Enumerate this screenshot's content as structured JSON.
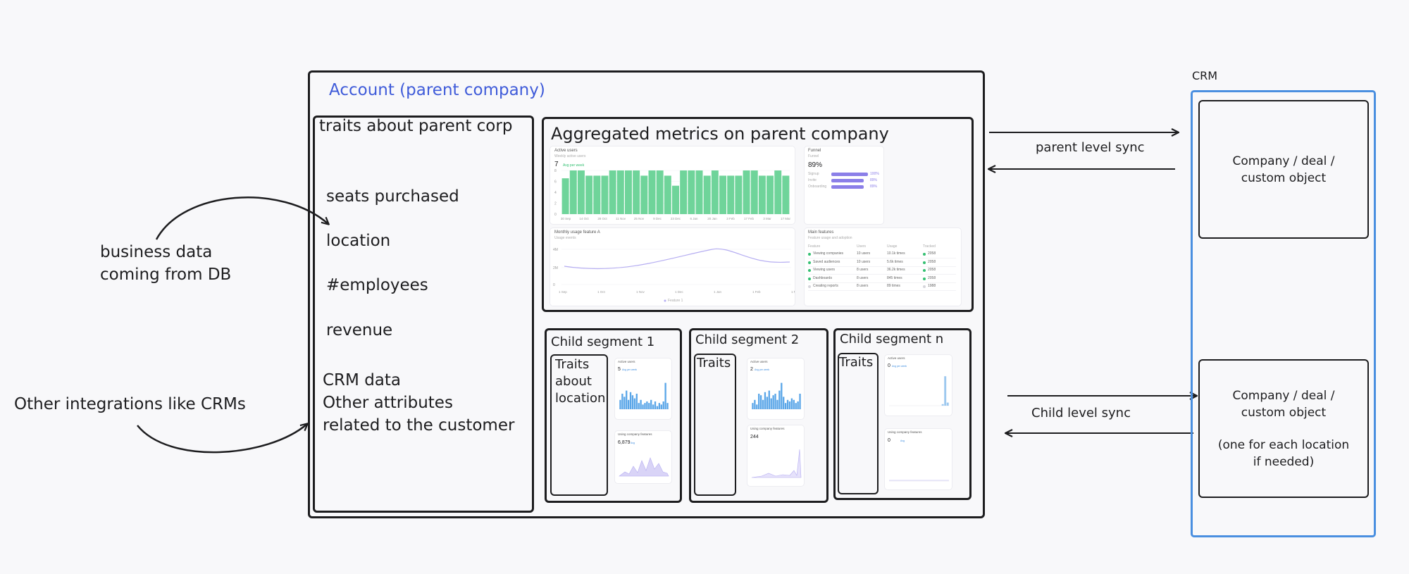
{
  "left_notes": {
    "business_line1": "business data",
    "business_line2": "coming from DB",
    "other_integrations": "Other integrations like CRMs"
  },
  "account": {
    "title": "Account (parent company)",
    "title_color": "#3f5bd9",
    "traits_box": {
      "title": "traits about parent corp",
      "items": [
        "seats purchased",
        "location",
        "#employees",
        "revenue"
      ],
      "crm_lines": [
        "CRM data",
        "Other attributes",
        "related to the customer"
      ]
    },
    "aggregated": {
      "title": "Aggregated metrics on parent company",
      "active_users_card": {
        "title": "Active users",
        "subtitle": "Weekly active users",
        "value": "7",
        "badge": "Avg per week",
        "y_ticks": [
          "8",
          "6",
          "4",
          "2",
          "0"
        ],
        "x_ticks": [
          "30 Sep",
          "14 Oct",
          "28 Oct",
          "11 Nov",
          "25 Nov",
          "9 Dec",
          "23 Dec",
          "6 Jan",
          "20 Jan",
          "3 Feb",
          "17 Feb",
          "3 Mar",
          "17 Mar"
        ],
        "bar_color": "#6fd49a"
      },
      "funnel_card": {
        "title": "Funnel",
        "subtitle": "Funnel",
        "value": "89%",
        "rows": [
          {
            "label": "Signup",
            "pct": "100%"
          },
          {
            "label": "Invite",
            "pct": "89%"
          },
          {
            "label": "Onboarding",
            "pct": "89%"
          }
        ],
        "bar_color": "#8b7fe8"
      },
      "monthly_card": {
        "title": "Monthly usage feature A",
        "subtitle": "Usage events",
        "y_ticks": [
          "4M",
          "2M",
          "0"
        ],
        "x_ticks": [
          "1 Sep",
          "1 Oct",
          "1 Nov",
          "1 Dec",
          "1 Jan",
          "1 Feb",
          "1 Mar"
        ],
        "legend": "Feature 1",
        "line_color": "#b6aef2"
      },
      "features_card": {
        "title": "Main features",
        "subtitle": "Feature usage and adoption",
        "headers": [
          "Feature",
          "Users",
          "Usage",
          "Tracked"
        ],
        "rows": [
          {
            "feature": "Viewing companies",
            "users": "10 users",
            "usage": "10.1k times",
            "tracked": "2058",
            "dot": "#34c072"
          },
          {
            "feature": "Saved audiences",
            "users": "10 users",
            "usage": "5.6k times",
            "tracked": "2058",
            "dot": "#34c072"
          },
          {
            "feature": "Viewing users",
            "users": "8 users",
            "usage": "36.2k times",
            "tracked": "2058",
            "dot": "#34c072"
          },
          {
            "feature": "Dashboards",
            "users": "8 users",
            "usage": "845 times",
            "tracked": "2058",
            "dot": "#34c072"
          },
          {
            "feature": "Creating reports",
            "users": "8 users",
            "usage": "89 times",
            "tracked": "1988",
            "dot": "#d6d6dc"
          }
        ]
      }
    },
    "segments": [
      {
        "title": "Child segment 1",
        "traits": "Traits about location",
        "card1": {
          "title": "Active users",
          "value": "5",
          "badge": "Avg per week"
        },
        "card2": {
          "title": "Using company features",
          "value": "6,879",
          "badge": "Avg"
        }
      },
      {
        "title": "Child segment 2",
        "traits": "Traits",
        "card1": {
          "title": "Active users",
          "value": "2",
          "badge": "Avg per week"
        },
        "card2": {
          "title": "Using company features",
          "value": "244",
          "badge": ""
        }
      },
      {
        "title": "Child segment n",
        "traits": "Traits",
        "card1": {
          "title": "Active users",
          "value": "0",
          "badge": "Avg per week"
        },
        "card2": {
          "title": "Using company features",
          "value": "0",
          "badge": "Avg"
        }
      }
    ]
  },
  "sync": {
    "parent": "parent level sync",
    "child": "Child level sync"
  },
  "crm": {
    "label": "CRM",
    "border_color": "#4a8fe0",
    "object_top": [
      "Company / deal /",
      "custom object"
    ],
    "object_bottom": [
      "Company / deal /",
      "custom object",
      "(one for each location",
      "if needed)"
    ]
  }
}
